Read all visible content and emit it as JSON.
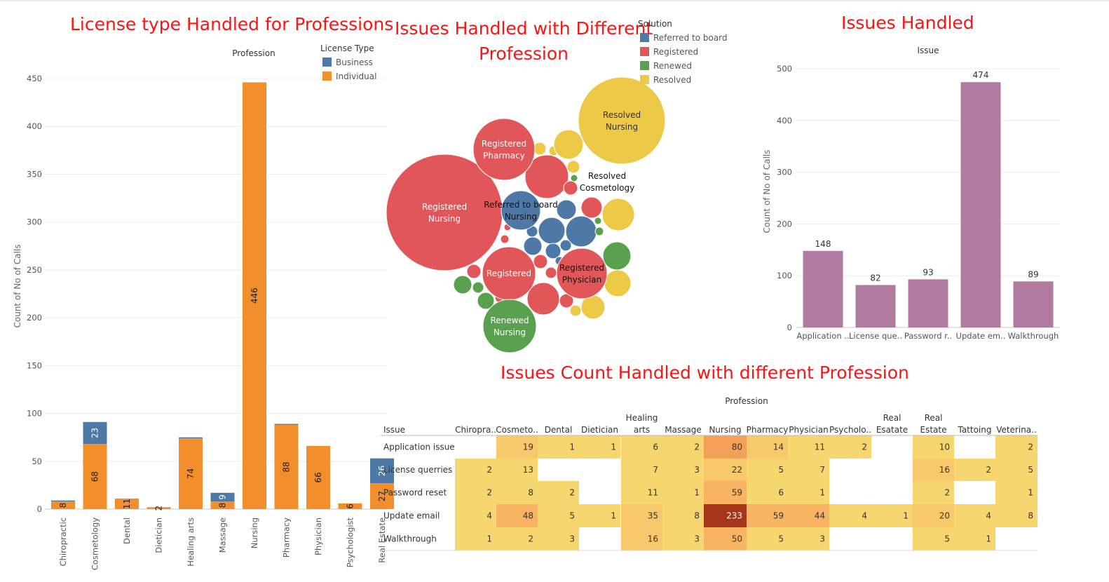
{
  "titles": {
    "license": "License type Handled for Professions",
    "bubble_line1": "Issues Handled with Different",
    "bubble_line2": "Profession",
    "issues": "Issues Handled",
    "heatmap": "Issues Count Handled with different Profession"
  },
  "colors": {
    "business": "#4e79a7",
    "individual": "#f28e2b",
    "referred": "#4e79a7",
    "registered": "#e15759",
    "renewed": "#59a14f",
    "resolved": "#edc948",
    "issue_bar": "#b07aa1",
    "title_red": "#ff1212"
  },
  "chart_data": [
    {
      "type": "bar",
      "stacked": true,
      "header": "Profession",
      "ylabel": "Count of No of Calls",
      "ylim": [
        0,
        460
      ],
      "yticks": [
        0,
        50,
        100,
        150,
        200,
        250,
        300,
        350,
        400,
        450
      ],
      "grid": true,
      "legend": {
        "title": "License Type",
        "position": "top-right",
        "items": [
          "Business",
          "Individual"
        ]
      },
      "categories": [
        "Chiropractic",
        "Cosmetology",
        "Dental",
        "Dietician",
        "Healing arts",
        "Massage",
        "Nursing",
        "Pharmacy",
        "Physician",
        "Psychologist",
        "Real Estate"
      ],
      "series": [
        {
          "name": "Individual",
          "values": [
            8,
            68,
            11,
            2,
            74,
            8,
            446,
            88,
            66,
            6,
            27
          ],
          "labels": [
            "8",
            "68",
            "11",
            "2",
            "74",
            "8",
            "446",
            "88",
            "66",
            "6",
            "27"
          ]
        },
        {
          "name": "Business",
          "values": [
            1,
            23,
            0,
            0,
            1,
            9,
            0,
            1,
            0,
            0,
            26
          ],
          "labels": [
            "",
            "23",
            "",
            "",
            "",
            "9",
            "",
            "",
            "",
            "",
            "26"
          ]
        }
      ]
    },
    {
      "type": "bubble",
      "legend": {
        "title": "Solution",
        "position": "top-right",
        "items": [
          "Referred to board",
          "Registered",
          "Renewed",
          "Resolved"
        ]
      },
      "labeled_bubbles": [
        {
          "solution": "Registered",
          "profession": "Nursing",
          "line1": "Registered",
          "line2": "Nursing"
        },
        {
          "solution": "Resolved",
          "profession": "Nursing",
          "line1": "Resolved",
          "line2": "Nursing"
        },
        {
          "solution": "Registered",
          "profession": "Pharmacy",
          "line1": "Registered",
          "line2": "Pharmacy"
        },
        {
          "solution": "Resolved",
          "profession": "Cosmetology",
          "line1": "Resolved",
          "line2": "Cosmetology"
        },
        {
          "solution": "Referred to board",
          "profession": "Nursing",
          "line1": "Referred to board",
          "line2": "Nursing"
        },
        {
          "solution": "Registered",
          "profession": "",
          "line1": "Registered",
          "line2": ""
        },
        {
          "solution": "Registered",
          "profession": "Physician",
          "line1": "Registered",
          "line2": "Physician"
        },
        {
          "solution": "Renewed",
          "profession": "Nursing",
          "line1": "Renewed",
          "line2": "Nursing"
        }
      ]
    },
    {
      "type": "bar",
      "header": "Issue",
      "ylabel": "Count of No of Calls",
      "ylim": [
        0,
        500
      ],
      "yticks": [
        0,
        100,
        200,
        300,
        400,
        500
      ],
      "grid": true,
      "categories": [
        "Application ..",
        "License que..",
        "Password r..",
        "Update em..",
        "Walkthrough"
      ],
      "values": [
        148,
        82,
        93,
        474,
        89
      ]
    },
    {
      "type": "heatmap",
      "column_header": "Profession",
      "row_header": "Issue",
      "columns": [
        {
          "l1": "",
          "l2": "Chiropra.."
        },
        {
          "l1": "",
          "l2": "Cosmeto.."
        },
        {
          "l1": "",
          "l2": "Dental"
        },
        {
          "l1": "",
          "l2": "Dietician"
        },
        {
          "l1": "Healing",
          "l2": "arts"
        },
        {
          "l1": "",
          "l2": "Massage"
        },
        {
          "l1": "",
          "l2": "Nursing"
        },
        {
          "l1": "",
          "l2": "Pharmacy"
        },
        {
          "l1": "",
          "l2": "Physician"
        },
        {
          "l1": "",
          "l2": "Psycholo.."
        },
        {
          "l1": "Real",
          "l2": "Esatate"
        },
        {
          "l1": "Real",
          "l2": "Estate"
        },
        {
          "l1": "",
          "l2": "Tattoing"
        },
        {
          "l1": "",
          "l2": "Veterina.."
        }
      ],
      "rows": [
        "Application issue",
        "License querries",
        "Password reset",
        "Update email",
        "Walkthrough"
      ],
      "values": [
        [
          null,
          19,
          1,
          1,
          6,
          2,
          80,
          14,
          11,
          2,
          null,
          10,
          null,
          2
        ],
        [
          2,
          13,
          null,
          null,
          7,
          3,
          22,
          5,
          7,
          null,
          null,
          16,
          2,
          5
        ],
        [
          2,
          8,
          2,
          null,
          11,
          1,
          59,
          6,
          1,
          null,
          null,
          2,
          null,
          1
        ],
        [
          4,
          48,
          5,
          1,
          35,
          8,
          233,
          59,
          44,
          4,
          1,
          20,
          4,
          8
        ],
        [
          1,
          2,
          3,
          null,
          16,
          3,
          50,
          5,
          3,
          null,
          null,
          5,
          1,
          null
        ]
      ]
    }
  ]
}
